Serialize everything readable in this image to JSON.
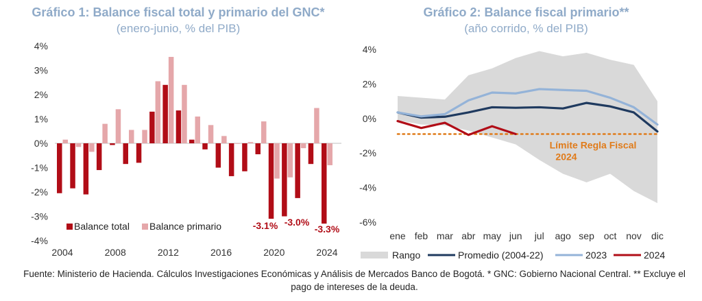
{
  "colors": {
    "title": "#8faac8",
    "balance_total": "#b10d17",
    "balance_primario": "#e5a7aa",
    "rango": "#d9d9d9",
    "promedio": "#1f3a5f",
    "y2023": "#94b3d8",
    "y2024": "#b10d17",
    "limite": "#e07b1a"
  },
  "chart_data": [
    {
      "type": "bar",
      "title": "Gráfico 1: Balance fiscal total y primario del GNC*",
      "subtitle": "(enero-junio, % del PIB)",
      "ylim": [
        -4,
        4
      ],
      "yticks": [
        "4%",
        "3%",
        "2%",
        "1%",
        "0%",
        "-1%",
        "-2%",
        "-3%",
        "-4%"
      ],
      "years": [
        2004,
        2005,
        2006,
        2007,
        2008,
        2009,
        2010,
        2011,
        2012,
        2013,
        2014,
        2015,
        2016,
        2017,
        2018,
        2019,
        2020,
        2021,
        2022,
        2023,
        2024
      ],
      "xticks": [
        "2004",
        "2008",
        "2012",
        "2016",
        "2020",
        "2024"
      ],
      "series": [
        {
          "name": "Balance total",
          "values": [
            -2.05,
            -1.85,
            -2.1,
            -1.1,
            -0.07,
            -0.85,
            -0.8,
            1.3,
            2.4,
            1.35,
            0.15,
            -0.25,
            -1.0,
            -1.35,
            -1.15,
            -0.45,
            -3.1,
            -3.0,
            -2.25,
            -0.85,
            -3.3
          ]
        },
        {
          "name": "Balance primario",
          "values": [
            0.15,
            -0.15,
            -0.35,
            0.8,
            1.4,
            0.55,
            0.55,
            2.55,
            3.55,
            2.4,
            1.1,
            0.75,
            0.3,
            0.0,
            0.05,
            0.9,
            -1.45,
            -1.4,
            -0.2,
            1.45,
            -0.9
          ]
        }
      ],
      "annotations": [
        "-3.1%",
        "-3.0%",
        "-3.3%"
      ],
      "legend": "bottom-right"
    },
    {
      "type": "line",
      "title": "Gráfico 2: Balance fiscal primario**",
      "subtitle": "(año corrido, % del PIB)",
      "ylim": [
        -6,
        4
      ],
      "yticks": [
        "4%",
        "2%",
        "0%",
        "-2%",
        "-4%",
        "-6%"
      ],
      "categories": [
        "ene",
        "feb",
        "mar",
        "abr",
        "may",
        "jun",
        "jul",
        "ago",
        "sep",
        "oct",
        "nov",
        "dic"
      ],
      "rango_upper": [
        1.3,
        1.2,
        1.1,
        2.5,
        2.9,
        3.5,
        3.9,
        3.6,
        3.8,
        3.4,
        3.1,
        1.0
      ],
      "rango_lower": [
        -0.1,
        -0.35,
        -0.4,
        -0.7,
        -1.1,
        -1.5,
        -2.4,
        -3.2,
        -3.7,
        -3.2,
        -4.2,
        -4.9
      ],
      "series": [
        {
          "name": "Promedio (2004-22)",
          "values": [
            0.35,
            0.05,
            0.1,
            0.35,
            0.65,
            0.62,
            0.65,
            0.58,
            0.9,
            0.7,
            0.35,
            -0.75
          ]
        },
        {
          "name": "2023",
          "values": [
            0.35,
            0.12,
            0.25,
            1.05,
            1.5,
            1.45,
            1.7,
            1.65,
            1.6,
            1.2,
            0.65,
            -0.35
          ]
        },
        {
          "name": "2024",
          "values": [
            -0.15,
            -0.55,
            -0.25,
            -0.95,
            -0.45,
            -0.9,
            null,
            null,
            null,
            null,
            null,
            null
          ]
        }
      ],
      "limite": {
        "label_line1": "Límite Regla Fiscal",
        "label_line2": "2024",
        "value": -0.9
      },
      "legend": [
        "Rango",
        "Promedio (2004-22)",
        "2023",
        "2024"
      ]
    }
  ],
  "source": "Fuente: Ministerio de Hacienda. Cálculos Investigaciones Económicas y Análisis de Mercados Banco de Bogotá. * GNC: Gobierno Nacional Central. ** Excluye el pago de intereses de la deuda."
}
